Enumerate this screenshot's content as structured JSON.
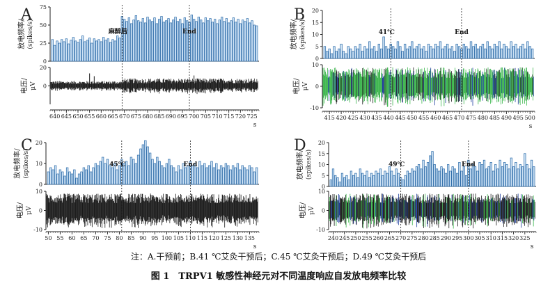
{
  "note": "注：A.干预前；B.41 ℃艾灸干预后；C.45 ℃艾灸干预后；D.49 ℃艾灸干预后",
  "caption": "图 1　TRPV1 敏感性神经元对不同温度响应自发放电频率比较",
  "colors": {
    "bar_fill": "#cfe3f5",
    "bar_stroke": "#2a6aa8",
    "trace_black": "#1a1a1a",
    "trace_green": "#39b54a",
    "trace_blue": "#1f3f9f"
  },
  "chart_data": [
    {
      "type": "bar",
      "panel": "A",
      "freq_ylabel": "放电频率/",
      "freq_yunit": "(spikes/s)",
      "volt_ylabel": "电压/",
      "volt_yunit": "μV",
      "x_unit": "s",
      "xlim": [
        638,
        728
      ],
      "x_ticks": [
        640,
        645,
        650,
        655,
        660,
        665,
        670,
        675,
        680,
        685,
        690,
        695,
        700,
        705,
        710,
        715,
        720,
        725
      ],
      "freq_ylim": [
        0,
        75
      ],
      "freq_yticks": [
        0,
        25,
        50,
        75
      ],
      "volt_ylim": [
        -20,
        20
      ],
      "volt_yticks": [
        0,
        20
      ],
      "trace_colors": [
        "#1a1a1a"
      ],
      "markers": [
        {
          "x": 669,
          "label": "麻醉后"
        },
        {
          "x": 698,
          "label": "End"
        }
      ],
      "x": [
        639,
        640,
        641,
        642,
        643,
        644,
        645,
        646,
        647,
        648,
        649,
        650,
        651,
        652,
        653,
        654,
        655,
        656,
        657,
        658,
        659,
        660,
        661,
        662,
        663,
        664,
        665,
        666,
        667,
        668,
        669,
        670,
        671,
        672,
        673,
        674,
        675,
        676,
        677,
        678,
        679,
        680,
        681,
        682,
        683,
        684,
        685,
        686,
        687,
        688,
        689,
        690,
        691,
        692,
        693,
        694,
        695,
        696,
        697,
        698,
        699,
        700,
        701,
        702,
        703,
        704,
        705,
        706,
        707,
        708,
        709,
        710,
        711,
        712,
        713,
        714,
        715,
        716,
        717,
        718,
        719,
        720,
        721,
        722,
        723,
        724,
        725,
        726,
        727
      ],
      "values": [
        30,
        22,
        28,
        25,
        30,
        27,
        31,
        24,
        29,
        33,
        28,
        26,
        30,
        35,
        27,
        29,
        32,
        25,
        31,
        28,
        30,
        27,
        33,
        29,
        31,
        26,
        30,
        28,
        35,
        32,
        62,
        58,
        55,
        60,
        52,
        57,
        63,
        56,
        54,
        59,
        53,
        61,
        57,
        55,
        60,
        52,
        58,
        62,
        54,
        56,
        59,
        53,
        57,
        61,
        55,
        58,
        52,
        60,
        56,
        54,
        64,
        58,
        55,
        61,
        57,
        53,
        60,
        56,
        59,
        54,
        58,
        52,
        57,
        61,
        55,
        59,
        53,
        56,
        60,
        54,
        58,
        52,
        57,
        55,
        59,
        53,
        56,
        50,
        49
      ]
    },
    {
      "type": "bar",
      "panel": "B",
      "freq_ylabel": "放电频率/",
      "freq_yunit": "(spikes/s)",
      "volt_ylabel": "电压/",
      "volt_yunit": "μV",
      "x_unit": "s",
      "xlim": [
        412,
        502
      ],
      "x_ticks": [
        415,
        420,
        425,
        430,
        435,
        440,
        445,
        450,
        455,
        460,
        465,
        470,
        475,
        480,
        485,
        490,
        495,
        500
      ],
      "freq_ylim": [
        0,
        20
      ],
      "freq_yticks": [
        0,
        5,
        10,
        15,
        20
      ],
      "volt_ylim": [
        -10,
        10
      ],
      "volt_yticks": [
        -10,
        0,
        10
      ],
      "trace_colors": [
        "#39b54a",
        "#1f3f9f",
        "#1a1a1a"
      ],
      "markers": [
        {
          "x": 441,
          "label": "41℃"
        },
        {
          "x": 471,
          "label": "End"
        }
      ],
      "x": [
        413,
        414,
        415,
        416,
        417,
        418,
        419,
        420,
        421,
        422,
        423,
        424,
        425,
        426,
        427,
        428,
        429,
        430,
        431,
        432,
        433,
        434,
        435,
        436,
        437,
        438,
        439,
        440,
        441,
        442,
        443,
        444,
        445,
        446,
        447,
        448,
        449,
        450,
        451,
        452,
        453,
        454,
        455,
        456,
        457,
        458,
        459,
        460,
        461,
        462,
        463,
        464,
        465,
        466,
        467,
        468,
        469,
        470,
        471,
        472,
        473,
        474,
        475,
        476,
        477,
        478,
        479,
        480,
        481,
        482,
        483,
        484,
        485,
        486,
        487,
        488,
        489,
        490,
        491,
        492,
        493,
        494,
        495,
        496,
        497,
        498,
        499,
        500,
        501
      ],
      "values": [
        5,
        3,
        4,
        2,
        5,
        3,
        4,
        6,
        3,
        2,
        5,
        4,
        3,
        5,
        4,
        6,
        3,
        5,
        4,
        7,
        4,
        5,
        3,
        6,
        4,
        9,
        5,
        4,
        6,
        5,
        4,
        7,
        5,
        3,
        6,
        4,
        5,
        7,
        4,
        5,
        6,
        4,
        5,
        3,
        6,
        5,
        4,
        6,
        5,
        7,
        4,
        5,
        6,
        4,
        5,
        3,
        6,
        5,
        4,
        6,
        5,
        4,
        7,
        5,
        6,
        4,
        5,
        6,
        4,
        7,
        5,
        4,
        6,
        5,
        7,
        4,
        6,
        5,
        4,
        7,
        5,
        6,
        4,
        5,
        6,
        4,
        7,
        5,
        4
      ]
    },
    {
      "type": "bar",
      "panel": "C",
      "freq_ylabel": "放电频率/",
      "freq_yunit": "(spikes/s)",
      "volt_ylabel": "电压/",
      "volt_yunit": "μV",
      "x_unit": "s",
      "xlim": [
        49,
        139
      ],
      "x_ticks": [
        50,
        55,
        60,
        65,
        70,
        75,
        80,
        85,
        90,
        95,
        100,
        105,
        110,
        115,
        120,
        125,
        130,
        135
      ],
      "freq_ylim": [
        0,
        20
      ],
      "freq_yticks": [
        0,
        10,
        20
      ],
      "volt_ylim": [
        -10,
        10
      ],
      "volt_yticks": [
        -10,
        0,
        10
      ],
      "trace_colors": [
        "#1a1a1a"
      ],
      "markers": [
        {
          "x": 81,
          "label": "45℃"
        },
        {
          "x": 110,
          "label": "End"
        }
      ],
      "x": [
        50,
        51,
        52,
        53,
        54,
        55,
        56,
        57,
        58,
        59,
        60,
        61,
        62,
        63,
        64,
        65,
        66,
        67,
        68,
        69,
        70,
        71,
        72,
        73,
        74,
        75,
        76,
        77,
        78,
        79,
        80,
        81,
        82,
        83,
        84,
        85,
        86,
        87,
        88,
        89,
        90,
        91,
        92,
        93,
        94,
        95,
        96,
        97,
        98,
        99,
        100,
        101,
        102,
        103,
        104,
        105,
        106,
        107,
        108,
        109,
        110,
        111,
        112,
        113,
        114,
        115,
        116,
        117,
        118,
        119,
        120,
        121,
        122,
        123,
        124,
        125,
        126,
        127,
        128,
        129,
        130,
        131,
        132,
        133,
        134,
        135,
        136,
        137,
        138
      ],
      "values": [
        6,
        8,
        7,
        9,
        5,
        7,
        6,
        4,
        8,
        6,
        5,
        7,
        3,
        5,
        6,
        8,
        7,
        9,
        6,
        8,
        10,
        9,
        11,
        13,
        10,
        12,
        9,
        8,
        10,
        7,
        9,
        12,
        10,
        11,
        9,
        13,
        12,
        10,
        14,
        17,
        19,
        21,
        18,
        15,
        12,
        10,
        13,
        11,
        9,
        8,
        10,
        12,
        9,
        8,
        6,
        9,
        7,
        10,
        8,
        9,
        11,
        9,
        10,
        8,
        11,
        9,
        10,
        8,
        9,
        11,
        8,
        10,
        7,
        9,
        8,
        10,
        9,
        7,
        9,
        8,
        10,
        7,
        9,
        8,
        7,
        9,
        8,
        6,
        8
      ]
    },
    {
      "type": "bar",
      "panel": "D",
      "freq_ylabel": "放电频率/",
      "freq_yunit": "(spikes/s)",
      "volt_ylabel": "电压/",
      "volt_yunit": "μV",
      "x_unit": "s",
      "xlim": [
        238,
        330
      ],
      "x_ticks": [
        240,
        245,
        250,
        255,
        260,
        265,
        270,
        275,
        280,
        285,
        290,
        295,
        300,
        305,
        310,
        315,
        320,
        325
      ],
      "freq_ylim": [
        0,
        20
      ],
      "freq_yticks": [
        0,
        5,
        10,
        15,
        20
      ],
      "volt_ylim": [
        -10,
        10
      ],
      "volt_yticks": [
        -10,
        0,
        10
      ],
      "trace_colors": [
        "#1a1a1a",
        "#1f3f9f",
        "#39b54a"
      ],
      "markers": [
        {
          "x": 270,
          "label": "49℃"
        },
        {
          "x": 300,
          "label": "End"
        }
      ],
      "x": [
        239,
        240,
        241,
        242,
        243,
        244,
        245,
        246,
        247,
        248,
        249,
        250,
        251,
        252,
        253,
        254,
        255,
        256,
        257,
        258,
        259,
        260,
        261,
        262,
        263,
        264,
        265,
        266,
        267,
        268,
        269,
        270,
        271,
        272,
        273,
        274,
        275,
        276,
        277,
        278,
        279,
        280,
        281,
        282,
        283,
        284,
        285,
        286,
        287,
        288,
        289,
        290,
        291,
        292,
        293,
        294,
        295,
        296,
        297,
        298,
        299,
        300,
        301,
        302,
        303,
        304,
        305,
        306,
        307,
        308,
        309,
        310,
        311,
        312,
        313,
        314,
        315,
        316,
        317,
        318,
        319,
        320,
        321,
        322,
        323,
        324,
        325,
        326,
        327,
        328,
        329
      ],
      "values": [
        3,
        8,
        5,
        4,
        2,
        6,
        4,
        5,
        3,
        7,
        5,
        6,
        4,
        8,
        6,
        5,
        7,
        4,
        6,
        5,
        7,
        6,
        8,
        5,
        7,
        6,
        9,
        7,
        5,
        8,
        6,
        4,
        3,
        5,
        7,
        6,
        8,
        7,
        9,
        10,
        8,
        12,
        9,
        11,
        14,
        16,
        10,
        8,
        7,
        9,
        8,
        6,
        10,
        7,
        9,
        8,
        6,
        11,
        7,
        9,
        5,
        12,
        8,
        10,
        9,
        7,
        11,
        10,
        12,
        8,
        9,
        11,
        7,
        10,
        8,
        12,
        9,
        11,
        10,
        8,
        13,
        9,
        11,
        8,
        10,
        9,
        15,
        10,
        8,
        12,
        9
      ]
    }
  ]
}
